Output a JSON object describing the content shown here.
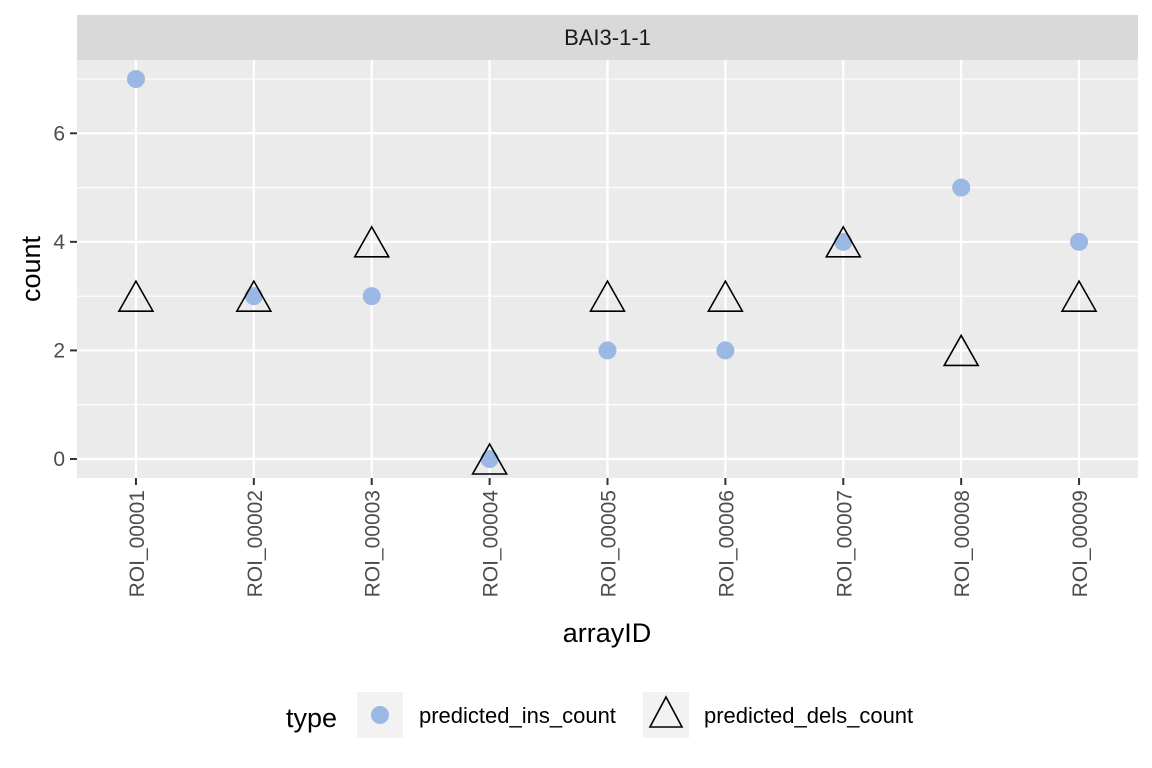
{
  "chart_data": {
    "type": "scatter",
    "facet_label": "BAI3-1-1",
    "xlabel": "arrayID",
    "ylabel": "count",
    "categories": [
      "ROI_00001",
      "ROI_00002",
      "ROI_00003",
      "ROI_00004",
      "ROI_00005",
      "ROI_00006",
      "ROI_00007",
      "ROI_00008",
      "ROI_00009"
    ],
    "ylim": [
      -0.35,
      7.35
    ],
    "yticks": [
      0,
      2,
      4,
      6
    ],
    "grid": true,
    "legend_position": "bottom",
    "legend_title": "type",
    "series": [
      {
        "name": "predicted_ins_count",
        "marker": "circle",
        "color": "#9AB8E3",
        "values": [
          7,
          3,
          3,
          0,
          2,
          2,
          4,
          5,
          4
        ]
      },
      {
        "name": "predicted_dels_count",
        "marker": "triangle-open",
        "color": "#000000",
        "values": [
          3,
          3,
          4,
          0,
          3,
          3,
          4,
          2,
          3
        ]
      }
    ],
    "colors": {
      "panel_bg": "#EBEBEB",
      "strip_bg": "#D9D9D9",
      "grid": "#FFFFFF",
      "legend_key_bg": "#F2F2F2",
      "tick_text": "#4D4D4D",
      "axis_title": "#000000"
    }
  }
}
